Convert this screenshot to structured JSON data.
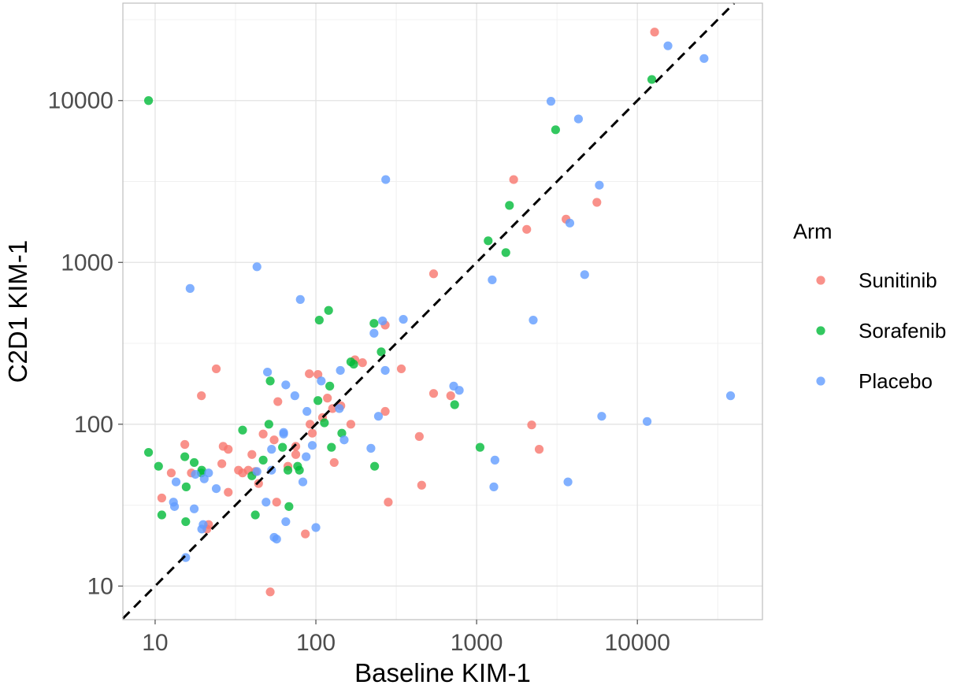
{
  "chart_data": {
    "type": "scatter",
    "xlabel": "Baseline KIM-1",
    "ylabel": "C2D1 KIM-1",
    "x_scale": "log10",
    "y_scale": "log10",
    "xlim": [
      6.3,
      60000
    ],
    "ylim": [
      6.2,
      40000
    ],
    "x_ticks": [
      10,
      100,
      1000,
      10000
    ],
    "x_tick_labels": [
      "10",
      "100",
      "1000",
      "10000"
    ],
    "y_ticks": [
      10,
      100,
      1000,
      10000
    ],
    "y_tick_labels": [
      "10",
      "100",
      "1000",
      "10000"
    ],
    "grid": true,
    "reference_line": "y = x (dashed)",
    "legend": {
      "title": "Arm",
      "position": "right"
    },
    "series": [
      {
        "name": "Sunitinib",
        "color": "#F8766D",
        "points": [
          [
            12.6,
            50
          ],
          [
            15.3,
            75
          ],
          [
            11,
            35
          ],
          [
            16.8,
            50
          ],
          [
            19.4,
            150
          ],
          [
            21,
            22.5
          ],
          [
            21.5,
            24
          ],
          [
            24,
            220
          ],
          [
            26,
            57
          ],
          [
            26.5,
            73
          ],
          [
            28.5,
            38
          ],
          [
            28.5,
            70
          ],
          [
            33,
            52
          ],
          [
            35,
            50
          ],
          [
            38,
            52
          ],
          [
            40,
            65
          ],
          [
            42,
            51
          ],
          [
            44,
            43
          ],
          [
            47,
            87
          ],
          [
            52,
            9.2
          ],
          [
            55,
            80
          ],
          [
            57,
            33
          ],
          [
            58,
            138
          ],
          [
            67,
            55
          ],
          [
            75,
            73
          ],
          [
            75,
            65
          ],
          [
            86,
            21
          ],
          [
            91,
            205
          ],
          [
            92,
            100
          ],
          [
            95,
            88
          ],
          [
            103,
            203
          ],
          [
            110,
            110
          ],
          [
            118,
            145
          ],
          [
            127,
            125
          ],
          [
            130,
            58
          ],
          [
            143,
            130
          ],
          [
            165,
            100
          ],
          [
            175,
            250
          ],
          [
            195,
            240
          ],
          [
            270,
            120
          ],
          [
            270,
            410
          ],
          [
            282,
            33
          ],
          [
            340,
            220
          ],
          [
            440,
            84
          ],
          [
            455,
            42
          ],
          [
            540,
            155
          ],
          [
            540,
            850
          ],
          [
            690,
            150
          ],
          [
            1700,
            3250
          ],
          [
            2050,
            1600
          ],
          [
            2200,
            99
          ],
          [
            2450,
            70
          ],
          [
            3600,
            1850
          ],
          [
            5600,
            2350
          ],
          [
            12800,
            26500
          ]
        ]
      },
      {
        "name": "Sorafenib",
        "color": "#00BA38",
        "points": [
          [
            9.1,
            10000
          ],
          [
            9.1,
            67
          ],
          [
            10.5,
            55
          ],
          [
            11,
            27.5
          ],
          [
            15.3,
            63
          ],
          [
            15.5,
            25
          ],
          [
            15.6,
            41
          ],
          [
            17.5,
            58
          ],
          [
            19.4,
            50
          ],
          [
            19.5,
            52
          ],
          [
            35,
            92
          ],
          [
            40,
            48
          ],
          [
            42,
            27.5
          ],
          [
            47,
            60
          ],
          [
            51,
            100
          ],
          [
            52,
            185
          ],
          [
            62,
            72
          ],
          [
            67,
            52
          ],
          [
            68,
            31
          ],
          [
            77,
            55
          ],
          [
            79,
            52
          ],
          [
            103,
            140
          ],
          [
            105,
            440
          ],
          [
            113,
            102
          ],
          [
            120,
            505
          ],
          [
            122,
            172
          ],
          [
            125,
            72
          ],
          [
            145,
            88
          ],
          [
            165,
            243
          ],
          [
            172,
            235
          ],
          [
            230,
            420
          ],
          [
            232,
            55
          ],
          [
            255,
            280
          ],
          [
            730,
            132
          ],
          [
            1050,
            72
          ],
          [
            1180,
            1360
          ],
          [
            1520,
            1150
          ],
          [
            1600,
            2250
          ],
          [
            3100,
            6600
          ],
          [
            12300,
            13500
          ]
        ]
      },
      {
        "name": "Placebo",
        "color": "#619CFF",
        "points": [
          [
            13,
            33
          ],
          [
            13.2,
            31
          ],
          [
            13.5,
            44
          ],
          [
            15.5,
            15
          ],
          [
            16.5,
            690
          ],
          [
            17.5,
            30
          ],
          [
            17.8,
            49
          ],
          [
            19.5,
            22.5
          ],
          [
            19.9,
            24
          ],
          [
            20.2,
            46
          ],
          [
            21.5,
            50
          ],
          [
            24,
            40
          ],
          [
            43,
            51
          ],
          [
            43,
            940
          ],
          [
            49,
            33
          ],
          [
            50,
            210
          ],
          [
            53,
            70
          ],
          [
            53,
            52
          ],
          [
            55,
            20
          ],
          [
            57,
            19.5
          ],
          [
            63,
            89
          ],
          [
            63,
            87
          ],
          [
            65,
            175
          ],
          [
            65,
            25
          ],
          [
            74,
            150
          ],
          [
            80,
            590
          ],
          [
            83,
            44
          ],
          [
            87,
            63
          ],
          [
            88,
            120
          ],
          [
            95,
            74
          ],
          [
            100,
            23
          ],
          [
            108,
            185
          ],
          [
            140,
            125
          ],
          [
            142,
            215
          ],
          [
            150,
            80
          ],
          [
            220,
            71
          ],
          [
            230,
            365
          ],
          [
            245,
            112
          ],
          [
            260,
            435
          ],
          [
            270,
            215
          ],
          [
            272,
            3250
          ],
          [
            350,
            445
          ],
          [
            720,
            172
          ],
          [
            780,
            162
          ],
          [
            1250,
            780
          ],
          [
            1280,
            41
          ],
          [
            1300,
            60
          ],
          [
            2250,
            440
          ],
          [
            2900,
            9900
          ],
          [
            3700,
            44
          ],
          [
            3800,
            1750
          ],
          [
            4300,
            7700
          ],
          [
            4700,
            840
          ],
          [
            5800,
            3000
          ],
          [
            6000,
            112
          ],
          [
            11500,
            104
          ],
          [
            15500,
            21800
          ],
          [
            26000,
            18200
          ],
          [
            38000,
            150
          ]
        ]
      }
    ]
  }
}
